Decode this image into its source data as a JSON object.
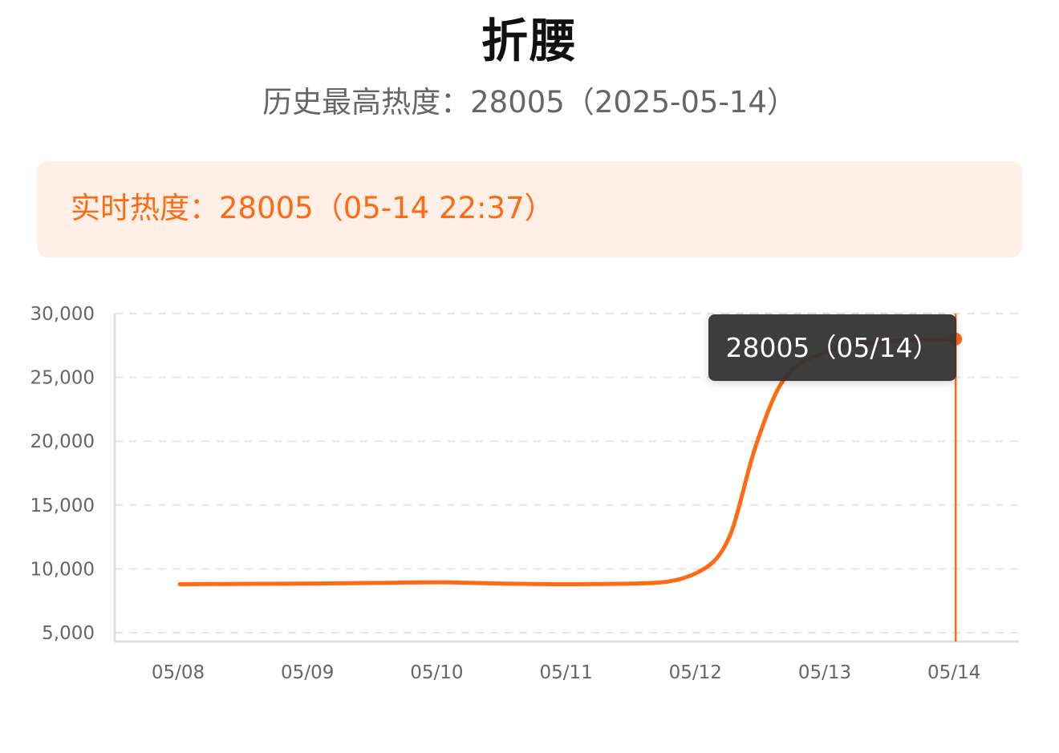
{
  "header": {
    "title": "折腰",
    "history_peak": "历史最高热度：28005（2025-05-14）"
  },
  "realtime": {
    "text": "实时热度：28005（05-14 22:37）"
  },
  "tooltip": {
    "text": "28005（05/14）"
  },
  "colors": {
    "accent": "#ff6a13",
    "realtime_bg": "#ffefe6",
    "tooltip_bg": "#333333",
    "grid": "#e6e6e6",
    "axis": "#e0e0e0",
    "tick_text": "#666666"
  },
  "chart_data": {
    "type": "line",
    "title": "",
    "xlabel": "",
    "ylabel": "",
    "categories": [
      "05/08",
      "05/09",
      "05/10",
      "05/11",
      "05/12",
      "05/13",
      "05/14"
    ],
    "ylim": [
      5000,
      30000
    ],
    "yticks": [
      5000,
      10000,
      15000,
      20000,
      25000,
      30000
    ],
    "ytick_labels": [
      "5,000",
      "10,000",
      "15,000",
      "20,000",
      "25,000",
      "30,000"
    ],
    "grid": true,
    "smooth": true,
    "series": [
      {
        "name": "",
        "points": [
          {
            "x": 0,
            "y": 8800
          },
          {
            "x": 1,
            "y": 8850
          },
          {
            "x": 1.5,
            "y": 8900
          },
          {
            "x": 2,
            "y": 8950
          },
          {
            "x": 2.5,
            "y": 8850
          },
          {
            "x": 3,
            "y": 8800
          },
          {
            "x": 3.5,
            "y": 8850
          },
          {
            "x": 4,
            "y": 9700
          },
          {
            "x": 4.25,
            "y": 12500
          },
          {
            "x": 4.45,
            "y": 19500
          },
          {
            "x": 4.65,
            "y": 24500
          },
          {
            "x": 5,
            "y": 27000
          },
          {
            "x": 5.5,
            "y": 27800
          },
          {
            "x": 6,
            "y": 28005
          }
        ]
      }
    ],
    "highlight": {
      "category": "05/14",
      "value": 28005
    }
  }
}
